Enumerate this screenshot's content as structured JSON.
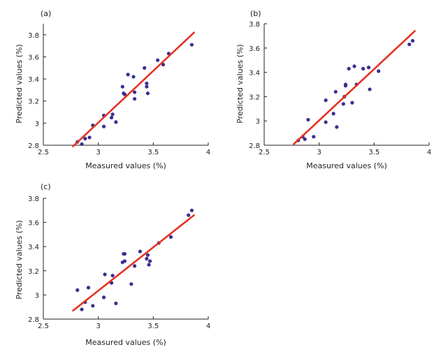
{
  "colors": {
    "point": "#3b2f8f",
    "line": "#e63222",
    "axis": "#222222"
  },
  "chart_data": [
    {
      "type": "scatter",
      "panel_label": "(a)",
      "xlabel": "Measured values (%)",
      "ylabel": "Predicted values (%)",
      "xlim": [
        2.5,
        4
      ],
      "ylim": [
        2.8,
        3.9
      ],
      "xticks": [
        2.5,
        3,
        3.5,
        4
      ],
      "xtick_labels": [
        "2.5",
        "3",
        "3.5",
        "4"
      ],
      "yticks": [
        2.8,
        3,
        3.2,
        3.4,
        3.6,
        3.8
      ],
      "ytick_labels": [
        "2.8",
        "3",
        "3.2",
        "3.4",
        "3.6",
        "3.8"
      ],
      "grid": false,
      "points": [
        [
          2.81,
          2.83
        ],
        [
          2.85,
          2.81
        ],
        [
          2.88,
          2.86
        ],
        [
          2.92,
          2.87
        ],
        [
          2.95,
          2.98
        ],
        [
          3.05,
          3.07
        ],
        [
          3.05,
          2.97
        ],
        [
          3.12,
          3.05
        ],
        [
          3.13,
          3.08
        ],
        [
          3.16,
          3.01
        ],
        [
          3.22,
          3.33
        ],
        [
          3.23,
          3.27
        ],
        [
          3.24,
          3.26
        ],
        [
          3.27,
          3.44
        ],
        [
          3.32,
          3.42
        ],
        [
          3.33,
          3.28
        ],
        [
          3.33,
          3.22
        ],
        [
          3.42,
          3.5
        ],
        [
          3.44,
          3.33
        ],
        [
          3.44,
          3.36
        ],
        [
          3.45,
          3.27
        ],
        [
          3.54,
          3.57
        ],
        [
          3.59,
          3.53
        ],
        [
          3.64,
          3.63
        ],
        [
          3.85,
          3.71
        ]
      ],
      "fit_line": [
        [
          2.77,
          2.79
        ],
        [
          3.87,
          3.82
        ]
      ]
    },
    {
      "type": "scatter",
      "panel_label": "(b)",
      "xlabel": "Measured values (%)",
      "ylabel": "Predicted values (%)",
      "xlim": [
        2.5,
        4
      ],
      "ylim": [
        2.8,
        3.8
      ],
      "xticks": [
        2.5,
        3,
        3.5,
        4
      ],
      "xtick_labels": [
        "2.5",
        "3",
        "3.5",
        "4"
      ],
      "yticks": [
        2.8,
        3,
        3.2,
        3.4,
        3.6,
        3.8
      ],
      "ytick_labels": [
        "2.8",
        "3",
        "3.2",
        "3.4",
        "3.6",
        "3.8"
      ],
      "grid": false,
      "points": [
        [
          2.81,
          2.84
        ],
        [
          2.85,
          2.87
        ],
        [
          2.87,
          2.85
        ],
        [
          2.9,
          3.01
        ],
        [
          2.95,
          2.87
        ],
        [
          3.06,
          3.17
        ],
        [
          3.06,
          2.99
        ],
        [
          3.13,
          3.06
        ],
        [
          3.15,
          3.24
        ],
        [
          3.16,
          2.95
        ],
        [
          3.22,
          3.14
        ],
        [
          3.23,
          3.2
        ],
        [
          3.24,
          3.3
        ],
        [
          3.24,
          3.29
        ],
        [
          3.27,
          3.43
        ],
        [
          3.3,
          3.15
        ],
        [
          3.32,
          3.45
        ],
        [
          3.34,
          3.3
        ],
        [
          3.4,
          3.43
        ],
        [
          3.45,
          3.44
        ],
        [
          3.46,
          3.26
        ],
        [
          3.54,
          3.41
        ],
        [
          3.82,
          3.63
        ],
        [
          3.85,
          3.66
        ]
      ],
      "fit_line": [
        [
          2.77,
          2.81
        ],
        [
          3.87,
          3.74
        ]
      ]
    },
    {
      "type": "scatter",
      "panel_label": "(c)",
      "xlabel": "Measured values (%)",
      "ylabel": "Predicted values (%)",
      "xlim": [
        2.5,
        4
      ],
      "ylim": [
        2.8,
        3.8
      ],
      "xticks": [
        2.5,
        3,
        3.5,
        4
      ],
      "xtick_labels": [
        "2.5",
        "3",
        "3.5",
        "4"
      ],
      "yticks": [
        2.8,
        3,
        3.2,
        3.4,
        3.6,
        3.8
      ],
      "ytick_labels": [
        "2.8",
        "3",
        "3.2",
        "3.4",
        "3.6",
        "3.8"
      ],
      "grid": false,
      "points": [
        [
          2.81,
          3.04
        ],
        [
          2.85,
          2.88
        ],
        [
          2.88,
          2.94
        ],
        [
          2.91,
          3.06
        ],
        [
          2.95,
          2.91
        ],
        [
          3.05,
          2.98
        ],
        [
          3.06,
          3.17
        ],
        [
          3.12,
          3.1
        ],
        [
          3.13,
          3.16
        ],
        [
          3.16,
          2.93
        ],
        [
          3.22,
          3.27
        ],
        [
          3.23,
          3.34
        ],
        [
          3.24,
          3.28
        ],
        [
          3.24,
          3.34
        ],
        [
          3.3,
          3.09
        ],
        [
          3.33,
          3.24
        ],
        [
          3.38,
          3.36
        ],
        [
          3.44,
          3.3
        ],
        [
          3.45,
          3.33
        ],
        [
          3.46,
          3.25
        ],
        [
          3.47,
          3.28
        ],
        [
          3.55,
          3.43
        ],
        [
          3.66,
          3.48
        ],
        [
          3.82,
          3.66
        ],
        [
          3.85,
          3.7
        ]
      ],
      "fit_line": [
        [
          2.77,
          2.87
        ],
        [
          3.87,
          3.66
        ]
      ]
    }
  ]
}
